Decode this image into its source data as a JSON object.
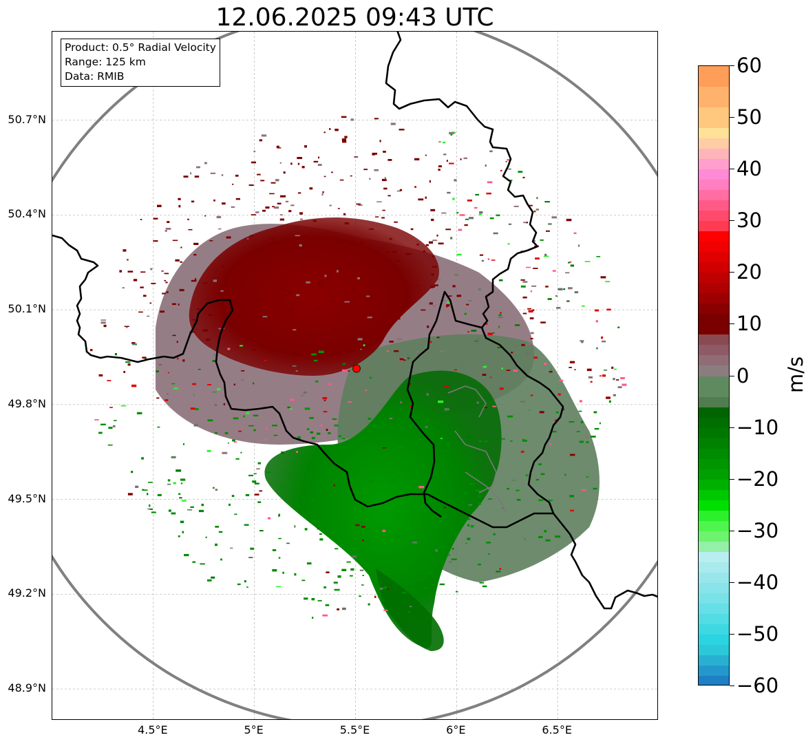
{
  "title": "12.06.2025 09:43 UTC",
  "info": {
    "product": "Product: 0.5° Radial Velocity",
    "range": "Range: 125 km",
    "source": "Data: RMIB"
  },
  "map": {
    "lon_range": [
      4.0,
      7.0
    ],
    "lat_range": [
      48.8,
      50.98
    ],
    "radar_site": {
      "lon": 5.505,
      "lat": 49.914
    },
    "range_ring_km": 125,
    "lat_ticks": [
      {
        "value": 48.9,
        "label": "48.9°N"
      },
      {
        "value": 49.2,
        "label": "49.2°N"
      },
      {
        "value": 49.5,
        "label": "49.5°N"
      },
      {
        "value": 49.8,
        "label": "49.8°N"
      },
      {
        "value": 50.1,
        "label": "50.1°N"
      },
      {
        "value": 50.4,
        "label": "50.4°N"
      },
      {
        "value": 50.7,
        "label": "50.7°N"
      }
    ],
    "lon_ticks": [
      {
        "value": 4.5,
        "label": "4.5°E"
      },
      {
        "value": 5.0,
        "label": "5°E"
      },
      {
        "value": 5.5,
        "label": "5.5°E"
      },
      {
        "value": 6.0,
        "label": "6°E"
      },
      {
        "value": 6.5,
        "label": "6.5°E"
      }
    ],
    "colors": {
      "border": "#000000",
      "range_ring": "#808080",
      "grid": "#b0b0b0",
      "site_marker": "#ff0000"
    }
  },
  "colorbar": {
    "unit": "m/s",
    "min": -60,
    "max": 60,
    "ticks": [
      {
        "value": 60,
        "label": "60"
      },
      {
        "value": 50,
        "label": "50"
      },
      {
        "value": 40,
        "label": "40"
      },
      {
        "value": 30,
        "label": "30"
      },
      {
        "value": 20,
        "label": "20"
      },
      {
        "value": 10,
        "label": "10"
      },
      {
        "value": 0,
        "label": "0"
      },
      {
        "value": -10,
        "label": "−10"
      },
      {
        "value": -20,
        "label": "−20"
      },
      {
        "value": -30,
        "label": "−30"
      },
      {
        "value": -40,
        "label": "−40"
      },
      {
        "value": -50,
        "label": "−50"
      },
      {
        "value": -60,
        "label": "−60"
      }
    ],
    "bands": [
      {
        "from": 56,
        "to": 60,
        "color": "#ff9e58"
      },
      {
        "from": 52,
        "to": 56,
        "color": "#ffb26c"
      },
      {
        "from": 48,
        "to": 52,
        "color": "#ffc87e"
      },
      {
        "from": 46,
        "to": 48,
        "color": "#ffe197"
      },
      {
        "from": 44,
        "to": 46,
        "color": "#ffcda5"
      },
      {
        "from": 42,
        "to": 44,
        "color": "#ffb4b9"
      },
      {
        "from": 40,
        "to": 42,
        "color": "#ff9fcd"
      },
      {
        "from": 38,
        "to": 40,
        "color": "#ff8ad5"
      },
      {
        "from": 36,
        "to": 38,
        "color": "#ff7fc0"
      },
      {
        "from": 34,
        "to": 36,
        "color": "#ff6da2"
      },
      {
        "from": 32,
        "to": 34,
        "color": "#ff5a87"
      },
      {
        "from": 30,
        "to": 32,
        "color": "#ff4a6c"
      },
      {
        "from": 28,
        "to": 30,
        "color": "#ff3b52"
      },
      {
        "from": 26,
        "to": 28,
        "color": "#ff0000"
      },
      {
        "from": 24,
        "to": 26,
        "color": "#f00000"
      },
      {
        "from": 22,
        "to": 24,
        "color": "#e00000"
      },
      {
        "from": 20,
        "to": 22,
        "color": "#d00000"
      },
      {
        "from": 18,
        "to": 20,
        "color": "#bf0000"
      },
      {
        "from": 16,
        "to": 18,
        "color": "#ae0000"
      },
      {
        "from": 14,
        "to": 16,
        "color": "#9c0000"
      },
      {
        "from": 12,
        "to": 14,
        "color": "#8a0000"
      },
      {
        "from": 8,
        "to": 12,
        "color": "#7a0000"
      },
      {
        "from": 6,
        "to": 8,
        "color": "#8a4a52"
      },
      {
        "from": 4,
        "to": 6,
        "color": "#8e5a66"
      },
      {
        "from": 2,
        "to": 4,
        "color": "#8f6c76"
      },
      {
        "from": 0,
        "to": 2,
        "color": "#8b7c80"
      },
      {
        "from": -2,
        "to": 0,
        "color": "#6e8a6e"
      },
      {
        "from": -4,
        "to": 0,
        "color": "#5f8a5f"
      },
      {
        "from": -6,
        "to": -4,
        "color": "#4f7d4f"
      },
      {
        "from": -8,
        "to": -6,
        "color": "#006400"
      },
      {
        "from": -10,
        "to": -8,
        "color": "#006e00"
      },
      {
        "from": -12,
        "to": -10,
        "color": "#007800"
      },
      {
        "from": -14,
        "to": -12,
        "color": "#008200"
      },
      {
        "from": -16,
        "to": -14,
        "color": "#008c00"
      },
      {
        "from": -18,
        "to": -16,
        "color": "#009600"
      },
      {
        "from": -20,
        "to": -18,
        "color": "#00a000"
      },
      {
        "from": -22,
        "to": -20,
        "color": "#00b000"
      },
      {
        "from": -24,
        "to": -22,
        "color": "#00c800"
      },
      {
        "from": -26,
        "to": -24,
        "color": "#00e000"
      },
      {
        "from": -28,
        "to": -26,
        "color": "#2cf02c"
      },
      {
        "from": -30,
        "to": -28,
        "color": "#4ef54e"
      },
      {
        "from": -32,
        "to": -30,
        "color": "#6ef36e"
      },
      {
        "from": -34,
        "to": -32,
        "color": "#94f0a8"
      },
      {
        "from": -36,
        "to": -34,
        "color": "#b8eef0"
      },
      {
        "from": -38,
        "to": -36,
        "color": "#a8eaee"
      },
      {
        "from": -40,
        "to": -38,
        "color": "#98e6ec"
      },
      {
        "from": -42,
        "to": -40,
        "color": "#88e4ea"
      },
      {
        "from": -44,
        "to": -42,
        "color": "#78e2e8"
      },
      {
        "from": -46,
        "to": -44,
        "color": "#66dfe6"
      },
      {
        "from": -48,
        "to": -46,
        "color": "#52dce4"
      },
      {
        "from": -50,
        "to": -48,
        "color": "#3ed8e2"
      },
      {
        "from": -52,
        "to": -50,
        "color": "#2ad4e0"
      },
      {
        "from": -54,
        "to": -52,
        "color": "#2cc8d8"
      },
      {
        "from": -56,
        "to": -54,
        "color": "#28b0d2"
      },
      {
        "from": -58,
        "to": -56,
        "color": "#2398cc"
      },
      {
        "from": -60,
        "to": -58,
        "color": "#1f7fc4"
      }
    ]
  }
}
